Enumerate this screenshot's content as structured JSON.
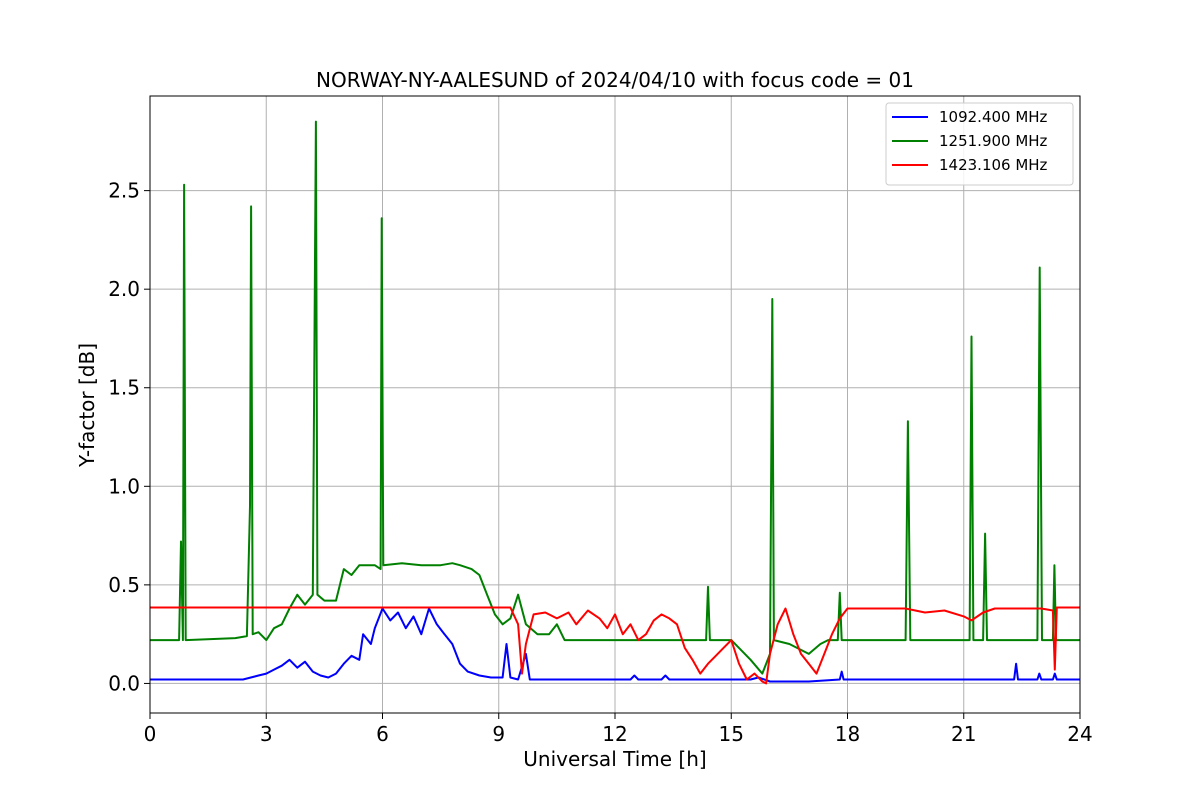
{
  "chart_data": {
    "type": "line",
    "title": "NORWAY-NY-AALESUND of 2024/04/10 with focus code = 01",
    "xlabel": "Universal Time [h]",
    "ylabel": "Y-factor [dB]",
    "xlim": [
      0,
      24
    ],
    "ylim": [
      -0.15,
      2.98
    ],
    "x_ticks": [
      0,
      3,
      6,
      9,
      12,
      15,
      18,
      21,
      24
    ],
    "x_tick_labels": [
      "0",
      "3",
      "6",
      "9",
      "12",
      "15",
      "18",
      "21",
      "24"
    ],
    "y_ticks": [
      0.0,
      0.5,
      1.0,
      1.5,
      2.0,
      2.5
    ],
    "y_tick_labels": [
      "0.0",
      "0.5",
      "1.0",
      "1.5",
      "2.0",
      "2.5"
    ],
    "grid": true,
    "legend_position": "top-right",
    "series": [
      {
        "name": "1092.400 MHz",
        "color": "#0000ff",
        "points": [
          [
            0,
            0.02
          ],
          [
            2.4,
            0.02
          ],
          [
            2.6,
            0.03
          ],
          [
            2.8,
            0.04
          ],
          [
            3.0,
            0.05
          ],
          [
            3.2,
            0.07
          ],
          [
            3.4,
            0.09
          ],
          [
            3.6,
            0.12
          ],
          [
            3.8,
            0.08
          ],
          [
            4.0,
            0.11
          ],
          [
            4.2,
            0.06
          ],
          [
            4.4,
            0.04
          ],
          [
            4.6,
            0.03
          ],
          [
            4.8,
            0.05
          ],
          [
            5.0,
            0.1
          ],
          [
            5.2,
            0.14
          ],
          [
            5.4,
            0.12
          ],
          [
            5.5,
            0.25
          ],
          [
            5.7,
            0.2
          ],
          [
            5.8,
            0.28
          ],
          [
            6.0,
            0.38
          ],
          [
            6.2,
            0.32
          ],
          [
            6.4,
            0.36
          ],
          [
            6.6,
            0.28
          ],
          [
            6.8,
            0.34
          ],
          [
            7.0,
            0.25
          ],
          [
            7.2,
            0.38
          ],
          [
            7.4,
            0.3
          ],
          [
            7.6,
            0.25
          ],
          [
            7.8,
            0.2
          ],
          [
            8.0,
            0.1
          ],
          [
            8.2,
            0.06
          ],
          [
            8.5,
            0.04
          ],
          [
            8.8,
            0.03
          ],
          [
            9.1,
            0.03
          ],
          [
            9.2,
            0.2
          ],
          [
            9.3,
            0.03
          ],
          [
            9.5,
            0.02
          ],
          [
            9.7,
            0.15
          ],
          [
            9.8,
            0.02
          ],
          [
            12.4,
            0.02
          ],
          [
            12.5,
            0.04
          ],
          [
            12.6,
            0.02
          ],
          [
            13.2,
            0.02
          ],
          [
            13.3,
            0.04
          ],
          [
            13.4,
            0.02
          ],
          [
            15.5,
            0.02
          ],
          [
            15.7,
            0.03
          ],
          [
            16.0,
            0.01
          ],
          [
            17.0,
            0.01
          ],
          [
            17.8,
            0.02
          ],
          [
            17.85,
            0.06
          ],
          [
            17.9,
            0.02
          ],
          [
            22.3,
            0.02
          ],
          [
            22.35,
            0.1
          ],
          [
            22.4,
            0.02
          ],
          [
            22.9,
            0.02
          ],
          [
            22.95,
            0.05
          ],
          [
            23.0,
            0.02
          ],
          [
            23.3,
            0.02
          ],
          [
            23.35,
            0.05
          ],
          [
            23.4,
            0.02
          ],
          [
            24,
            0.02
          ]
        ]
      },
      {
        "name": "1251.900 MHz",
        "color": "#008000",
        "points": [
          [
            0,
            0.22
          ],
          [
            0.75,
            0.22
          ],
          [
            0.8,
            0.72
          ],
          [
            0.85,
            0.22
          ],
          [
            0.88,
            2.53
          ],
          [
            0.92,
            0.22
          ],
          [
            2.2,
            0.23
          ],
          [
            2.5,
            0.24
          ],
          [
            2.58,
            0.9
          ],
          [
            2.61,
            2.42
          ],
          [
            2.65,
            0.25
          ],
          [
            2.8,
            0.26
          ],
          [
            3.0,
            0.22
          ],
          [
            3.2,
            0.28
          ],
          [
            3.4,
            0.3
          ],
          [
            3.6,
            0.38
          ],
          [
            3.8,
            0.45
          ],
          [
            4.0,
            0.4
          ],
          [
            4.2,
            0.45
          ],
          [
            4.28,
            2.85
          ],
          [
            4.32,
            0.45
          ],
          [
            4.5,
            0.42
          ],
          [
            4.8,
            0.42
          ],
          [
            5.0,
            0.58
          ],
          [
            5.2,
            0.55
          ],
          [
            5.4,
            0.6
          ],
          [
            5.6,
            0.6
          ],
          [
            5.8,
            0.6
          ],
          [
            5.95,
            0.58
          ],
          [
            5.98,
            2.36
          ],
          [
            6.02,
            0.6
          ],
          [
            6.5,
            0.61
          ],
          [
            7.0,
            0.6
          ],
          [
            7.5,
            0.6
          ],
          [
            7.8,
            0.61
          ],
          [
            8.0,
            0.6
          ],
          [
            8.3,
            0.58
          ],
          [
            8.5,
            0.55
          ],
          [
            8.7,
            0.45
          ],
          [
            8.9,
            0.35
          ],
          [
            9.1,
            0.3
          ],
          [
            9.3,
            0.33
          ],
          [
            9.5,
            0.45
          ],
          [
            9.7,
            0.3
          ],
          [
            10.0,
            0.25
          ],
          [
            10.3,
            0.25
          ],
          [
            10.5,
            0.3
          ],
          [
            10.7,
            0.22
          ],
          [
            11.0,
            0.22
          ],
          [
            13.0,
            0.22
          ],
          [
            14.35,
            0.22
          ],
          [
            14.4,
            0.49
          ],
          [
            14.45,
            0.22
          ],
          [
            15.0,
            0.22
          ],
          [
            15.5,
            0.12
          ],
          [
            15.8,
            0.05
          ],
          [
            16.0,
            0.15
          ],
          [
            16.06,
            1.95
          ],
          [
            16.1,
            0.22
          ],
          [
            16.5,
            0.2
          ],
          [
            17.0,
            0.15
          ],
          [
            17.3,
            0.2
          ],
          [
            17.5,
            0.22
          ],
          [
            17.75,
            0.22
          ],
          [
            17.8,
            0.46
          ],
          [
            17.85,
            0.22
          ],
          [
            19.5,
            0.22
          ],
          [
            19.56,
            1.33
          ],
          [
            19.62,
            0.22
          ],
          [
            21.15,
            0.22
          ],
          [
            21.2,
            1.76
          ],
          [
            21.25,
            0.22
          ],
          [
            21.5,
            0.22
          ],
          [
            21.55,
            0.76
          ],
          [
            21.6,
            0.22
          ],
          [
            22.9,
            0.22
          ],
          [
            22.96,
            2.11
          ],
          [
            23.02,
            0.22
          ],
          [
            23.3,
            0.22
          ],
          [
            23.34,
            0.6
          ],
          [
            23.38,
            0.22
          ],
          [
            24,
            0.22
          ]
        ]
      },
      {
        "name": "1423.106 MHz",
        "color": "#ff0000",
        "points": [
          [
            0,
            0.385
          ],
          [
            9.3,
            0.385
          ],
          [
            9.5,
            0.3
          ],
          [
            9.6,
            0.05
          ],
          [
            9.7,
            0.2
          ],
          [
            9.9,
            0.35
          ],
          [
            10.2,
            0.36
          ],
          [
            10.5,
            0.33
          ],
          [
            10.8,
            0.36
          ],
          [
            11.0,
            0.3
          ],
          [
            11.3,
            0.37
          ],
          [
            11.6,
            0.33
          ],
          [
            11.8,
            0.28
          ],
          [
            12.0,
            0.35
          ],
          [
            12.2,
            0.25
          ],
          [
            12.4,
            0.3
          ],
          [
            12.6,
            0.22
          ],
          [
            12.8,
            0.25
          ],
          [
            13.0,
            0.32
          ],
          [
            13.2,
            0.35
          ],
          [
            13.4,
            0.33
          ],
          [
            13.6,
            0.3
          ],
          [
            13.8,
            0.18
          ],
          [
            14.0,
            0.12
          ],
          [
            14.2,
            0.05
          ],
          [
            14.4,
            0.1
          ],
          [
            14.6,
            0.14
          ],
          [
            14.8,
            0.18
          ],
          [
            15.0,
            0.22
          ],
          [
            15.2,
            0.1
          ],
          [
            15.4,
            0.02
          ],
          [
            15.6,
            0.05
          ],
          [
            15.8,
            0.01
          ],
          [
            15.9,
            0.0
          ],
          [
            16.0,
            0.15
          ],
          [
            16.2,
            0.3
          ],
          [
            16.4,
            0.38
          ],
          [
            16.6,
            0.25
          ],
          [
            16.8,
            0.15
          ],
          [
            17.0,
            0.1
          ],
          [
            17.2,
            0.05
          ],
          [
            17.4,
            0.15
          ],
          [
            17.6,
            0.25
          ],
          [
            17.8,
            0.33
          ],
          [
            18.0,
            0.38
          ],
          [
            18.5,
            0.38
          ],
          [
            19.0,
            0.38
          ],
          [
            19.5,
            0.38
          ],
          [
            20.0,
            0.36
          ],
          [
            20.5,
            0.37
          ],
          [
            21.0,
            0.34
          ],
          [
            21.2,
            0.32
          ],
          [
            21.5,
            0.36
          ],
          [
            21.8,
            0.38
          ],
          [
            22.5,
            0.38
          ],
          [
            23.0,
            0.38
          ],
          [
            23.3,
            0.37
          ],
          [
            23.35,
            0.07
          ],
          [
            23.4,
            0.385
          ],
          [
            24,
            0.385
          ]
        ]
      }
    ]
  }
}
